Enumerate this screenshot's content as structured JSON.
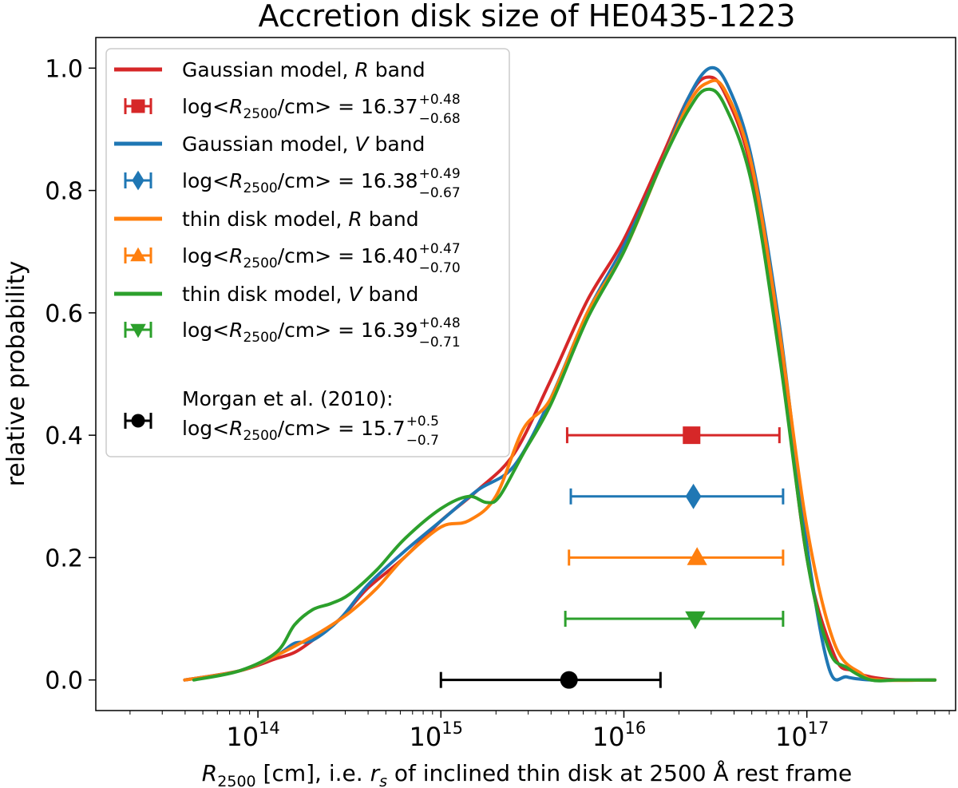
{
  "chart_data": {
    "type": "line",
    "title": "Accretion disk size of HE0435-1223",
    "ylabel": "relative probability",
    "xlabel": {
      "symbol": "R",
      "symbol_sub": "2500",
      "rest": " [cm], i.e. ",
      "rs": "r",
      "rs_sub": "s",
      "tail": " of inclined thin disk at 2500 Å rest frame"
    },
    "xscale": "log",
    "xlim": [
      13000000000000.0,
      6.5e+17
    ],
    "ylim": [
      -0.05,
      1.05
    ],
    "x_ticks": [
      {
        "value": 100000000000000.0,
        "base": "10",
        "exp": "14"
      },
      {
        "value": 1000000000000000.0,
        "base": "10",
        "exp": "15"
      },
      {
        "value": 1e+16,
        "base": "10",
        "exp": "16"
      },
      {
        "value": 1e+17,
        "base": "10",
        "exp": "17"
      }
    ],
    "y_ticks": [
      {
        "value": 0.0,
        "label": "0.0"
      },
      {
        "value": 0.2,
        "label": "0.2"
      },
      {
        "value": 0.4,
        "label": "0.4"
      },
      {
        "value": 0.6,
        "label": "0.6"
      },
      {
        "value": 0.8,
        "label": "0.8"
      },
      {
        "value": 1.0,
        "label": "1.0"
      }
    ],
    "series": [
      {
        "name": "Gaussian model, R band",
        "color": "#d62728",
        "log_x": [
          13.6,
          13.9,
          14.1,
          14.2,
          14.3,
          14.45,
          14.6,
          14.8,
          15.0,
          15.2,
          15.4,
          15.6,
          15.8,
          16.0,
          16.2,
          16.35,
          16.45,
          16.55,
          16.7,
          16.85,
          17.0,
          17.15,
          17.25,
          17.35,
          17.5,
          17.7
        ],
        "y": [
          0.0,
          0.015,
          0.035,
          0.045,
          0.065,
          0.1,
          0.15,
          0.2,
          0.26,
          0.31,
          0.37,
          0.49,
          0.62,
          0.72,
          0.85,
          0.95,
          0.985,
          0.96,
          0.83,
          0.55,
          0.2,
          0.04,
          0.015,
          0.005,
          0.0,
          0.0
        ]
      },
      {
        "name": "Gaussian model, V band",
        "color": "#1f77b4",
        "log_x": [
          13.6,
          13.9,
          14.1,
          14.2,
          14.3,
          14.45,
          14.6,
          14.8,
          15.0,
          15.2,
          15.4,
          15.6,
          15.8,
          16.0,
          16.2,
          16.35,
          16.47,
          16.57,
          16.7,
          16.85,
          17.0,
          17.12,
          17.22,
          17.35,
          17.5,
          17.7
        ],
        "y": [
          0.0,
          0.015,
          0.04,
          0.06,
          0.065,
          0.1,
          0.155,
          0.21,
          0.26,
          0.31,
          0.35,
          0.46,
          0.6,
          0.71,
          0.84,
          0.95,
          1.0,
          0.97,
          0.85,
          0.58,
          0.22,
          0.02,
          0.005,
          0.0,
          0.0,
          0.0
        ]
      },
      {
        "name": "thin disk model, R band",
        "color": "#ff7f0e",
        "log_x": [
          13.6,
          13.9,
          14.1,
          14.2,
          14.35,
          14.5,
          14.65,
          14.8,
          15.0,
          15.15,
          15.3,
          15.45,
          15.6,
          15.8,
          16.0,
          16.2,
          16.35,
          16.45,
          16.55,
          16.7,
          16.85,
          17.0,
          17.15,
          17.3,
          17.4,
          17.7
        ],
        "y": [
          0.0,
          0.015,
          0.04,
          0.055,
          0.08,
          0.11,
          0.15,
          0.2,
          0.25,
          0.26,
          0.3,
          0.41,
          0.46,
          0.6,
          0.7,
          0.84,
          0.94,
          0.975,
          0.965,
          0.84,
          0.57,
          0.25,
          0.06,
          0.01,
          0.0,
          0.0
        ]
      },
      {
        "name": "thin disk model, V band",
        "color": "#2ca02c",
        "log_x": [
          13.65,
          13.9,
          14.1,
          14.2,
          14.3,
          14.4,
          14.5,
          14.65,
          14.8,
          15.0,
          15.15,
          15.25,
          15.32,
          15.45,
          15.6,
          15.8,
          16.0,
          16.2,
          16.35,
          16.45,
          16.55,
          16.7,
          16.85,
          17.0,
          17.12,
          17.22,
          17.35,
          17.5,
          17.7
        ],
        "y": [
          0.0,
          0.015,
          0.045,
          0.09,
          0.115,
          0.125,
          0.14,
          0.18,
          0.23,
          0.28,
          0.3,
          0.29,
          0.3,
          0.37,
          0.45,
          0.59,
          0.7,
          0.84,
          0.93,
          0.965,
          0.94,
          0.81,
          0.53,
          0.2,
          0.05,
          0.02,
          0.0,
          0.0,
          0.0
        ]
      }
    ],
    "error_bars": [
      {
        "name": "Gaussian model, R band",
        "color": "#d62728",
        "marker": "square",
        "y": 0.4,
        "log_center": 16.37,
        "plus": 0.48,
        "minus": 0.68
      },
      {
        "name": "Gaussian model, V band",
        "color": "#1f77b4",
        "marker": "diamond",
        "y": 0.3,
        "log_center": 16.38,
        "plus": 0.49,
        "minus": 0.67
      },
      {
        "name": "thin disk model, R band",
        "color": "#ff7f0e",
        "marker": "triangle-up",
        "y": 0.2,
        "log_center": 16.4,
        "plus": 0.47,
        "minus": 0.7
      },
      {
        "name": "thin disk model, V band",
        "color": "#2ca02c",
        "marker": "triangle-down",
        "y": 0.1,
        "log_center": 16.39,
        "plus": 0.48,
        "minus": 0.71
      },
      {
        "name": "Morgan et al. (2010)",
        "color": "#000000",
        "marker": "circle",
        "y": 0.0,
        "log_center": 15.7,
        "plus": 0.5,
        "minus": 0.7
      }
    ],
    "legend": {
      "placement": "upper-left",
      "entries": [
        {
          "kind": "line",
          "color": "#d62728",
          "pre": "Gaussian model, ",
          "band": "R",
          "post": " band"
        },
        {
          "kind": "errorbar",
          "color": "#d62728",
          "marker": "square",
          "value": "16.37",
          "plus": "+0.48",
          "minus": "−0.68"
        },
        {
          "kind": "line",
          "color": "#1f77b4",
          "pre": "Gaussian model, ",
          "band": "V",
          "post": " band"
        },
        {
          "kind": "errorbar",
          "color": "#1f77b4",
          "marker": "diamond",
          "value": "16.38",
          "plus": "+0.49",
          "minus": "−0.67"
        },
        {
          "kind": "line",
          "color": "#ff7f0e",
          "pre": "thin disk model, ",
          "band": "R",
          "post": " band"
        },
        {
          "kind": "errorbar",
          "color": "#ff7f0e",
          "marker": "triangle-up",
          "value": "16.40",
          "plus": "+0.47",
          "minus": "−0.70"
        },
        {
          "kind": "line",
          "color": "#2ca02c",
          "pre": "thin disk model, ",
          "band": "V",
          "post": " band"
        },
        {
          "kind": "errorbar",
          "color": "#2ca02c",
          "marker": "triangle-down",
          "value": "16.39",
          "plus": "+0.48",
          "minus": "−0.71"
        },
        {
          "kind": "morgan",
          "color": "#000000",
          "marker": "circle",
          "label": "Morgan et al. (2010):",
          "value": "15.7",
          "plus": "+0.5",
          "minus": "−0.7"
        }
      ],
      "expr_prefix": "log<",
      "expr_R": "R",
      "expr_sub": "2500",
      "expr_suffix": "/cm>",
      "expr_eq": " = "
    }
  }
}
